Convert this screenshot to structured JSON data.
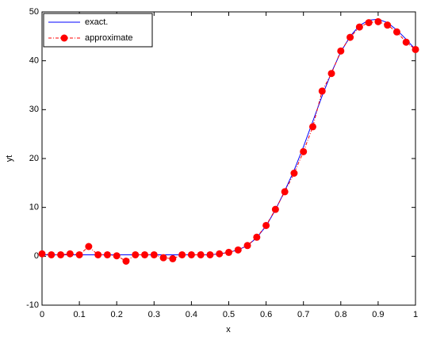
{
  "chart_data": {
    "type": "line",
    "xlabel": "x",
    "ylabel": "yt",
    "x": [
      0,
      0.025,
      0.05,
      0.075,
      0.1,
      0.125,
      0.15,
      0.175,
      0.2,
      0.225,
      0.25,
      0.275,
      0.3,
      0.325,
      0.35,
      0.375,
      0.4,
      0.425,
      0.45,
      0.475,
      0.5,
      0.525,
      0.55,
      0.575,
      0.6,
      0.625,
      0.65,
      0.675,
      0.7,
      0.725,
      0.75,
      0.775,
      0.8,
      0.825,
      0.85,
      0.875,
      0.9,
      0.925,
      0.95,
      0.975,
      1
    ],
    "series": [
      {
        "name": "exact.",
        "color": "#0000ff",
        "style": "solid",
        "marker": false,
        "values": [
          0.3,
          0.3,
          0.3,
          0.3,
          0.3,
          0.3,
          0.3,
          0.3,
          0.3,
          0.3,
          0.3,
          0.3,
          0.3,
          0.3,
          0.3,
          0.3,
          0.3,
          0.3,
          0.3,
          0.5,
          0.8,
          1.3,
          2.2,
          3.8,
          6.2,
          9.5,
          13.4,
          17.6,
          22.4,
          27.6,
          32.8,
          37.6,
          41.8,
          45.0,
          47.2,
          48.3,
          48.5,
          47.8,
          46.3,
          44.4,
          42.3
        ]
      },
      {
        "name": "approximate",
        "color": "#ff0000",
        "style": "dashdot",
        "marker": true,
        "values": [
          0.5,
          0.3,
          0.3,
          0.5,
          0.3,
          2.0,
          0.3,
          0.3,
          0.1,
          -1.0,
          0.3,
          0.3,
          0.3,
          -0.3,
          -0.5,
          0.3,
          0.3,
          0.3,
          0.3,
          0.5,
          0.8,
          1.3,
          2.2,
          3.9,
          6.3,
          9.6,
          13.2,
          17.0,
          21.4,
          26.5,
          33.8,
          37.4,
          42.0,
          44.8,
          46.9,
          47.8,
          48.0,
          47.3,
          45.9,
          43.8,
          42.3
        ]
      }
    ],
    "xlim": [
      0,
      1
    ],
    "xticks": [
      0,
      0.1,
      0.2,
      0.3,
      0.4,
      0.5,
      0.6,
      0.7,
      0.8,
      0.9,
      1
    ],
    "ylim": [
      -10,
      50
    ],
    "yticks": [
      -10,
      0,
      10,
      20,
      30,
      40,
      50
    ],
    "grid": false,
    "legend": "top-left"
  }
}
